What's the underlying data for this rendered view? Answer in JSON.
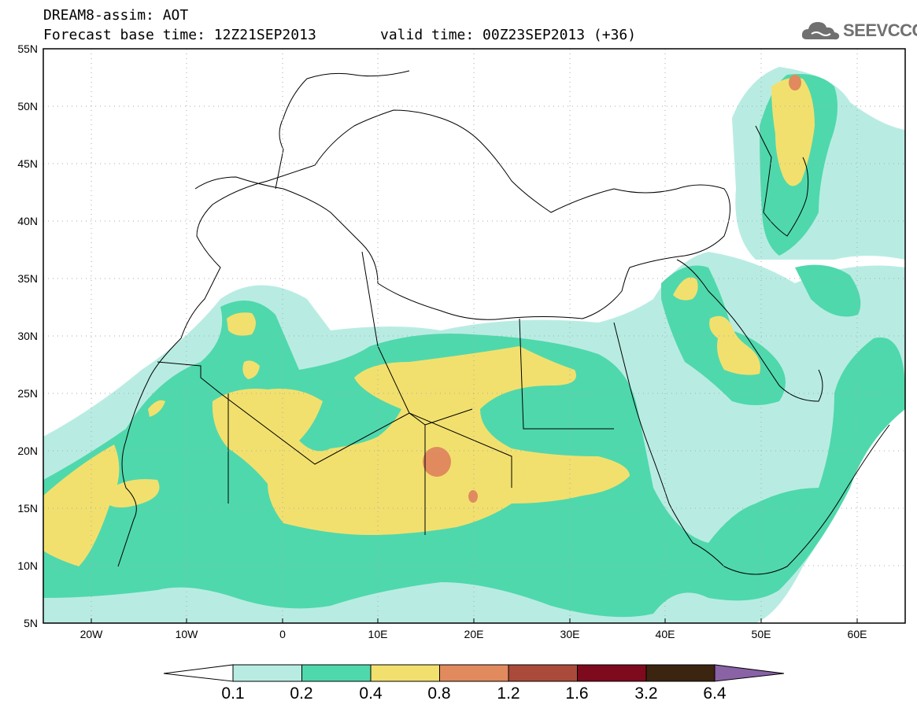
{
  "header": {
    "title": "DREAM8-assim: AOT",
    "base_time": "Forecast base time: 12Z21SEP2013",
    "valid_time": "valid time: 00Z23SEP2013 (+36)",
    "logo_text": "SEEVCCC",
    "logo_icon": "cloud-logo-icon"
  },
  "map": {
    "region": "North Africa, Mediterranean, Middle East",
    "lat_range": [
      5,
      55
    ],
    "lon_range": [
      -25,
      65
    ],
    "lat_labels": [
      "55N",
      "50N",
      "45N",
      "40N",
      "35N",
      "30N",
      "25N",
      "20N",
      "15N",
      "10N",
      "5N"
    ],
    "lon_labels": [
      "20W",
      "10W",
      "0",
      "10E",
      "20E",
      "30E",
      "40E",
      "50E",
      "60E"
    ],
    "grid": "dotted"
  },
  "colorbar": {
    "colors": [
      "#b8ece3",
      "#4fd8ac",
      "#f2e06e",
      "#e18a5e",
      "#aa4a3a",
      "#7e0a1e",
      "#3b2410",
      "#8a62a6"
    ],
    "labels": [
      "0.1",
      "0.2",
      "0.4",
      "0.8",
      "1.2",
      "1.6",
      "3.2",
      "6.4"
    ]
  }
}
